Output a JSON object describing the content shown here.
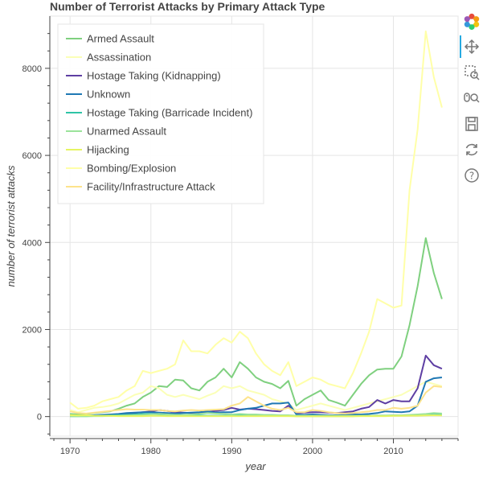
{
  "chart_data": {
    "type": "line",
    "title": "Number of Terrorist Attacks by Primary Attack Type",
    "xlabel": "year",
    "ylabel": "number of terrorist attacks",
    "xlim": [
      1967.5,
      2018
    ],
    "ylim": [
      -450,
      9200
    ],
    "xticks": [
      1970,
      1980,
      1990,
      2000,
      2010
    ],
    "yticks": [
      0,
      2000,
      4000,
      6000,
      8000
    ],
    "grid": true,
    "legend_position": "top-left",
    "x": [
      1970,
      1971,
      1972,
      1973,
      1974,
      1975,
      1976,
      1977,
      1978,
      1979,
      1980,
      1981,
      1982,
      1983,
      1984,
      1985,
      1986,
      1987,
      1988,
      1989,
      1990,
      1991,
      1992,
      1993,
      1994,
      1995,
      1996,
      1997,
      1998,
      1999,
      2000,
      2001,
      2002,
      2003,
      2004,
      2005,
      2006,
      2007,
      2008,
      2009,
      2010,
      2011,
      2012,
      2013,
      2014,
      2015,
      2016
    ],
    "series": [
      {
        "name": "Armed Assault",
        "color": "#7fd07f",
        "values": [
          60,
          50,
          60,
          80,
          100,
          120,
          180,
          250,
          300,
          450,
          550,
          700,
          680,
          850,
          830,
          650,
          600,
          800,
          900,
          1100,
          900,
          1250,
          1100,
          900,
          800,
          750,
          650,
          820,
          250,
          400,
          500,
          600,
          380,
          320,
          250,
          500,
          750,
          950,
          1080,
          1100,
          1100,
          1380,
          2100,
          3000,
          4100,
          3300,
          2700
        ]
      },
      {
        "name": "Assassination",
        "color": "#fbffb7",
        "values": [
          150,
          100,
          150,
          200,
          220,
          250,
          300,
          400,
          500,
          550,
          700,
          650,
          500,
          450,
          500,
          450,
          400,
          480,
          550,
          700,
          650,
          700,
          600,
          550,
          500,
          400,
          350,
          300,
          150,
          200,
          250,
          300,
          250,
          200,
          150,
          200,
          250,
          300,
          350,
          400,
          450,
          500,
          600,
          700,
          800,
          750,
          700
        ]
      },
      {
        "name": "Hostage Taking (Kidnapping)",
        "color": "#5e3fa3",
        "values": [
          10,
          10,
          15,
          20,
          25,
          30,
          40,
          60,
          80,
          100,
          120,
          150,
          130,
          100,
          90,
          80,
          90,
          110,
          130,
          150,
          200,
          160,
          180,
          170,
          150,
          130,
          120,
          250,
          80,
          90,
          100,
          100,
          90,
          80,
          100,
          120,
          180,
          220,
          380,
          300,
          380,
          350,
          350,
          650,
          1400,
          1180,
          1100
        ]
      },
      {
        "name": "Unknown",
        "color": "#1f78b4",
        "values": [
          20,
          20,
          20,
          30,
          40,
          50,
          60,
          80,
          90,
          100,
          100,
          90,
          80,
          70,
          80,
          90,
          100,
          120,
          90,
          100,
          100,
          150,
          180,
          200,
          250,
          300,
          300,
          320,
          50,
          40,
          50,
          40,
          30,
          30,
          40,
          50,
          50,
          60,
          80,
          120,
          110,
          100,
          120,
          250,
          800,
          880,
          900
        ]
      },
      {
        "name": "Hostage Taking (Barricade Incident)",
        "color": "#2ec4a6",
        "values": [
          10,
          10,
          10,
          15,
          20,
          25,
          30,
          40,
          50,
          60,
          60,
          50,
          40,
          30,
          30,
          30,
          25,
          20,
          20,
          20,
          20,
          30,
          25,
          20,
          20,
          20,
          15,
          15,
          10,
          10,
          10,
          10,
          10,
          10,
          10,
          10,
          15,
          15,
          20,
          20,
          25,
          25,
          30,
          35,
          40,
          45,
          40
        ]
      },
      {
        "name": "Unarmed Assault",
        "color": "#9be39b",
        "values": [
          5,
          5,
          5,
          10,
          10,
          15,
          20,
          25,
          30,
          40,
          50,
          60,
          50,
          40,
          40,
          50,
          60,
          80,
          70,
          60,
          50,
          60,
          50,
          50,
          40,
          40,
          30,
          30,
          20,
          20,
          20,
          20,
          20,
          20,
          20,
          20,
          20,
          20,
          25,
          25,
          30,
          30,
          40,
          50,
          60,
          80,
          70
        ]
      },
      {
        "name": "Hijacking",
        "color": "#e6f562",
        "values": [
          30,
          25,
          30,
          20,
          15,
          15,
          10,
          10,
          10,
          10,
          15,
          15,
          10,
          10,
          10,
          10,
          10,
          10,
          10,
          10,
          10,
          10,
          10,
          10,
          10,
          10,
          10,
          10,
          5,
          5,
          5,
          5,
          5,
          5,
          5,
          5,
          10,
          10,
          10,
          10,
          15,
          15,
          20,
          20,
          25,
          30,
          25
        ]
      },
      {
        "name": "Bombing/Explosion",
        "color": "#ffffa8",
        "values": [
          320,
          180,
          200,
          250,
          350,
          400,
          450,
          600,
          700,
          1050,
          1000,
          1050,
          1100,
          1200,
          1750,
          1500,
          1500,
          1450,
          1650,
          1800,
          1700,
          1950,
          1800,
          1450,
          1200,
          1050,
          950,
          1250,
          700,
          800,
          900,
          850,
          750,
          700,
          650,
          1000,
          1450,
          1950,
          2700,
          2600,
          2500,
          2550,
          5200,
          6600,
          8850,
          7800,
          7100
        ]
      },
      {
        "name": "Facility/Infrastructure Attack",
        "color": "#fde38c",
        "values": [
          120,
          80,
          70,
          90,
          110,
          130,
          150,
          170,
          160,
          160,
          150,
          150,
          130,
          120,
          140,
          150,
          140,
          150,
          160,
          170,
          250,
          300,
          450,
          350,
          250,
          180,
          150,
          200,
          100,
          100,
          150,
          130,
          100,
          80,
          70,
          80,
          100,
          120,
          150,
          150,
          200,
          180,
          200,
          250,
          550,
          700,
          680
        ]
      }
    ]
  },
  "toolbar": {
    "tools": [
      "bokeh-logo-icon",
      "pan-icon",
      "box-zoom-icon",
      "wheel-zoom-icon",
      "save-icon",
      "reset-icon",
      "help-icon"
    ]
  }
}
